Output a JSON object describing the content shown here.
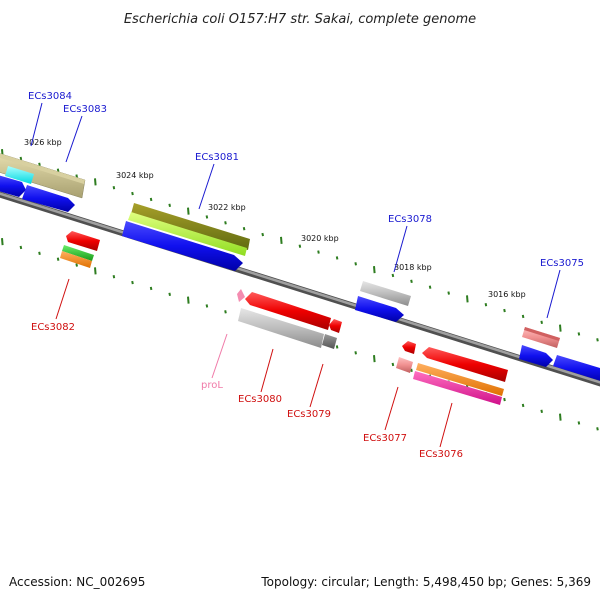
{
  "title": "Escherichia coli O157:H7 str. Sakai, complete genome",
  "footer": {
    "accession": "Accession: NC_002695",
    "summary": "Topology: circular; Length: 5,498,450 bp; Genes: 5,369"
  },
  "scale": {
    "kbp_3026": "3026 kbp",
    "kbp_3024": "3024 kbp",
    "kbp_3022": "3022 kbp",
    "kbp_3020": "3020 kbp",
    "kbp_3018": "3018 kbp",
    "kbp_3016": "3016 kbp"
  },
  "genes": {
    "ECs3084": "ECs3084",
    "ECs3083": "ECs3083",
    "ECs3081": "ECs3081",
    "ECs3078": "ECs3078",
    "ECs3075": "ECs3075",
    "ECs3082": "ECs3082",
    "proL": "proL",
    "ECs3080": "ECs3080",
    "ECs3079": "ECs3079",
    "ECs3077": "ECs3077",
    "ECs3076": "ECs3076"
  },
  "colors": {
    "forward_label": "#1a1ad0",
    "reverse_label": "#d01010",
    "rna_label": "#f07aa8",
    "tick": "#2e7d20",
    "backbone": "#7a7a7a"
  }
}
